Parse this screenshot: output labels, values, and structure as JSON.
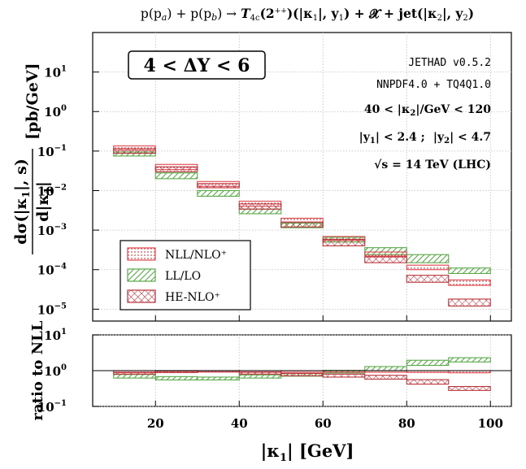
{
  "chart_data": [
    {
      "type": "area",
      "title": "p(p_a) + p(p_b) → T_4c(2^{++})(|κ1|, y1) + X + jet(|κ2|, y2)",
      "ylabel": "dσ(|κ1|, s) / d|κ1|  [pb/GeV]",
      "xlabel": "",
      "xlim": [
        5,
        105
      ],
      "ylim": [
        5e-06,
        100
      ],
      "yscale": "log",
      "grid": true,
      "legend_position": "bottom-left",
      "categories": [
        "10-20",
        "20-30",
        "30-40",
        "40-50",
        "50-60",
        "60-70",
        "70-80",
        "80-90",
        "90-100"
      ],
      "bins": [
        [
          10,
          20
        ],
        [
          20,
          30
        ],
        [
          30,
          40
        ],
        [
          40,
          50
        ],
        [
          50,
          60
        ],
        [
          60,
          70
        ],
        [
          70,
          80
        ],
        [
          80,
          90
        ],
        [
          90,
          100
        ]
      ],
      "series": [
        {
          "name": "NLL/NLO⁺",
          "color": "#e0484f",
          "hatch": "dots",
          "lo": [
            0.105,
            0.034,
            0.0128,
            0.004,
            0.0016,
            0.00055,
            0.00022,
            0.0001,
            4e-05
          ],
          "hi": [
            0.135,
            0.046,
            0.017,
            0.0054,
            0.002,
            0.00069,
            0.00028,
            0.00013,
            5.5e-05
          ]
        },
        {
          "name": "LL/LO",
          "color": "#5aa84a",
          "hatch": "diag",
          "lo": [
            0.075,
            0.02,
            0.0072,
            0.0026,
            0.00115,
            0.0005,
            0.00024,
            0.00015,
            8e-05
          ],
          "hi": [
            0.095,
            0.028,
            0.01,
            0.0034,
            0.0015,
            0.00066,
            0.00036,
            0.00024,
            0.00011
          ]
        },
        {
          "name": "HE-NLO⁺",
          "color": "#b8323a",
          "hatch": "cross",
          "lo": [
            0.088,
            0.03,
            0.0118,
            0.0034,
            0.0012,
            0.0004,
            0.00015,
            4.8e-05,
            1.2e-05
          ],
          "hi": [
            0.115,
            0.04,
            0.015,
            0.0046,
            0.0016,
            0.00058,
            0.00021,
            7.2e-05,
            1.8e-05
          ]
        }
      ],
      "yticks": [
        "10^-5",
        "10^-4",
        "10^-3",
        "10^-2",
        "10^-1",
        "10^0",
        "10^1"
      ],
      "annotations": [
        "4 < ΔY < 6",
        "JETHAD v0.5.2",
        "NNPDF4.0 + TQ4Q1.0",
        "40 < |κ2|/GeV < 120",
        "|y1| < 2.4 ;  |y2| < 4.7",
        "√s = 14 TeV (LHC)"
      ]
    },
    {
      "type": "area",
      "title": "",
      "ylabel": "ratio to NLL",
      "xlabel": "|κ1| [GeV]",
      "xlim": [
        5,
        105
      ],
      "ylim": [
        0.1,
        10
      ],
      "yscale": "log",
      "grid": true,
      "reference_line": 1,
      "bins": [
        [
          10,
          20
        ],
        [
          20,
          30
        ],
        [
          30,
          40
        ],
        [
          40,
          50
        ],
        [
          50,
          60
        ],
        [
          60,
          70
        ],
        [
          70,
          80
        ],
        [
          80,
          90
        ],
        [
          90,
          100
        ]
      ],
      "xticks": [
        20,
        40,
        60,
        80,
        100
      ],
      "yticks": [
        "10^-1",
        "10^0",
        "10^1"
      ],
      "series": [
        {
          "name": "NLL/NLO⁺",
          "color": "#e0484f",
          "hatch": "dots",
          "lo": [
            0.88,
            0.9,
            0.92,
            0.9,
            0.9,
            0.91,
            0.9,
            0.89,
            0.87
          ],
          "hi": [
            1.0,
            1.0,
            1.0,
            1.0,
            1.0,
            1.0,
            1.0,
            1.0,
            1.0
          ]
        },
        {
          "name": "LL/LO",
          "color": "#5aa84a",
          "hatch": "diag",
          "lo": [
            0.62,
            0.55,
            0.55,
            0.62,
            0.7,
            0.86,
            1.0,
            1.4,
            1.75
          ],
          "hi": [
            0.78,
            0.68,
            0.66,
            0.76,
            0.83,
            1.02,
            1.3,
            1.95,
            2.3
          ]
        },
        {
          "name": "HE-NLO⁺",
          "color": "#b8323a",
          "hatch": "cross",
          "lo": [
            0.8,
            0.88,
            0.92,
            0.8,
            0.72,
            0.66,
            0.58,
            0.42,
            0.28
          ],
          "hi": [
            0.9,
            0.98,
            1.0,
            0.92,
            0.84,
            0.8,
            0.74,
            0.56,
            0.36
          ]
        }
      ]
    }
  ],
  "legend": {
    "entries": [
      "NLL/NLO⁺",
      "LL/LO",
      "HE-NLO⁺"
    ]
  },
  "labels": {
    "title_main": "p(p",
    "title_a": "a",
    "title_plus1": ") + p(p",
    "title_b": "b",
    "title_arrow": ") → ",
    "title_T": "T",
    "title_4c": "4c",
    "title_state": "(2",
    "title_pp": "++",
    "title_rest1": ")(|κ",
    "title_one": "1",
    "title_rest2": "|, y",
    "title_y1sub": "1",
    "title_rest3": ") + 𝓧 + jet(|κ",
    "title_two": "2",
    "title_rest4": "|, y",
    "title_y2sub": "2",
    "title_rest5": ")",
    "ylabel_top_num": "dσ(|κ",
    "ylabel_top_num_sub": "1",
    "ylabel_top_num_end": "|, s)",
    "ylabel_top_den": "d|κ",
    "ylabel_top_den_sub": "1",
    "ylabel_top_den_end": "|",
    "ylabel_unit": "[pb/GeV]",
    "ylabel_bottom": "ratio to NLL",
    "xlabel": "|κ",
    "xlabel_sub": "1",
    "xlabel_end": "| [GeV]",
    "box_label": "4 < ΔY < 6",
    "jethad": "JETHAD v0.5.2",
    "pdf": "NNPDF4.0 + TQ4Q1.0",
    "kappa2_range": "40 < |κ",
    "kappa2_sub": "2",
    "kappa2_end": "|/GeV < 120",
    "rap_cut_a": "|y",
    "rap_cut_a_sub": "1",
    "rap_cut_a_end": "| < 2.4 ;",
    "rap_cut_b": "|y",
    "rap_cut_b_sub": "2",
    "rap_cut_b_end": "| < 4.7",
    "energy": "√s = 14 TeV (LHC)",
    "ytick_top": [
      "10",
      "10",
      "10",
      "10",
      "10",
      "10",
      "10"
    ],
    "ytick_top_exp": [
      "−5",
      "−4",
      "−3",
      "−2",
      "−1",
      "0",
      "1"
    ],
    "ytick_bot": [
      "10",
      "10",
      "10"
    ],
    "ytick_bot_exp": [
      "−1",
      "0",
      "1"
    ],
    "xticks": [
      "20",
      "40",
      "60",
      "80",
      "100"
    ]
  },
  "colors": {
    "nll": "#e0484f",
    "ll": "#5aa84a",
    "he": "#b8323a",
    "grid": "#bdbdbd",
    "axis": "#000000"
  }
}
